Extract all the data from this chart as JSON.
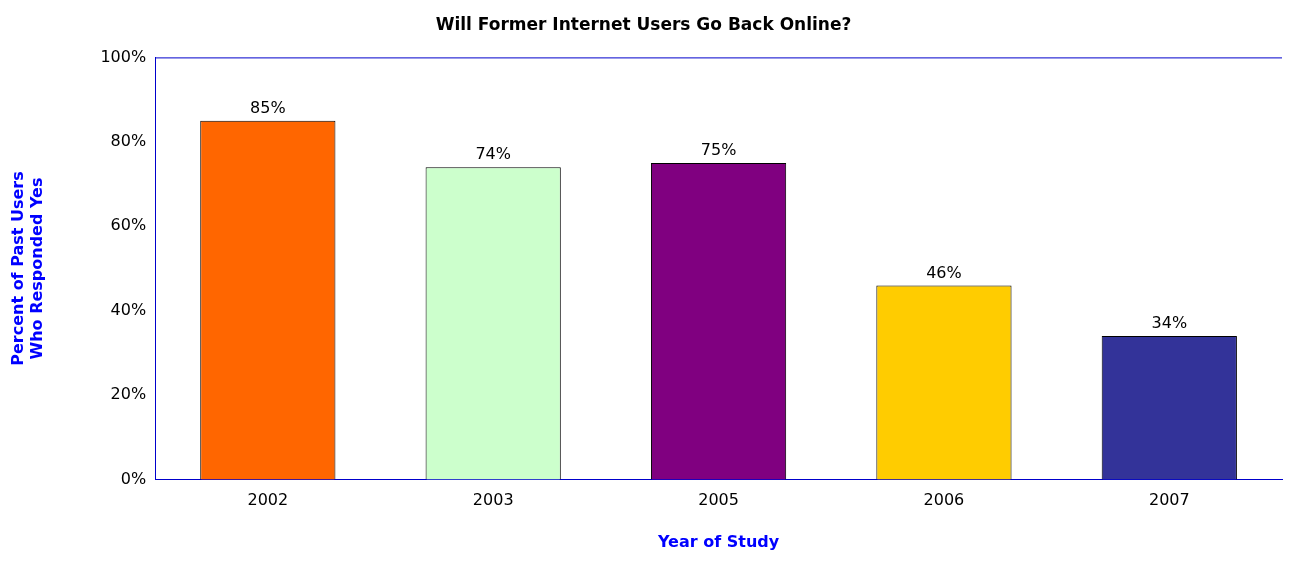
{
  "chart_data": {
    "type": "bar",
    "title": "Will Former Internet Users Go Back Online?",
    "xlabel": "Year of Study",
    "ylabel": "Percent of Past Users\nWho Responded Yes",
    "categories": [
      "2002",
      "2003",
      "2005",
      "2006",
      "2007"
    ],
    "values": [
      85,
      74,
      75,
      46,
      34
    ],
    "colors": [
      "#ff6600",
      "#ccffcc",
      "#800080",
      "#ffcc00",
      "#333399"
    ],
    "value_labels": [
      "85%",
      "74%",
      "75%",
      "46%",
      "34%"
    ],
    "ylim": [
      0,
      100
    ],
    "yticks": [
      {
        "value": 0,
        "label": "0%"
      },
      {
        "value": 20,
        "label": "20%"
      },
      {
        "value": 40,
        "label": "40%"
      },
      {
        "value": 60,
        "label": "60%"
      },
      {
        "value": 80,
        "label": "80%"
      },
      {
        "value": 100,
        "label": "100%"
      }
    ],
    "grid": false,
    "legend": false
  }
}
